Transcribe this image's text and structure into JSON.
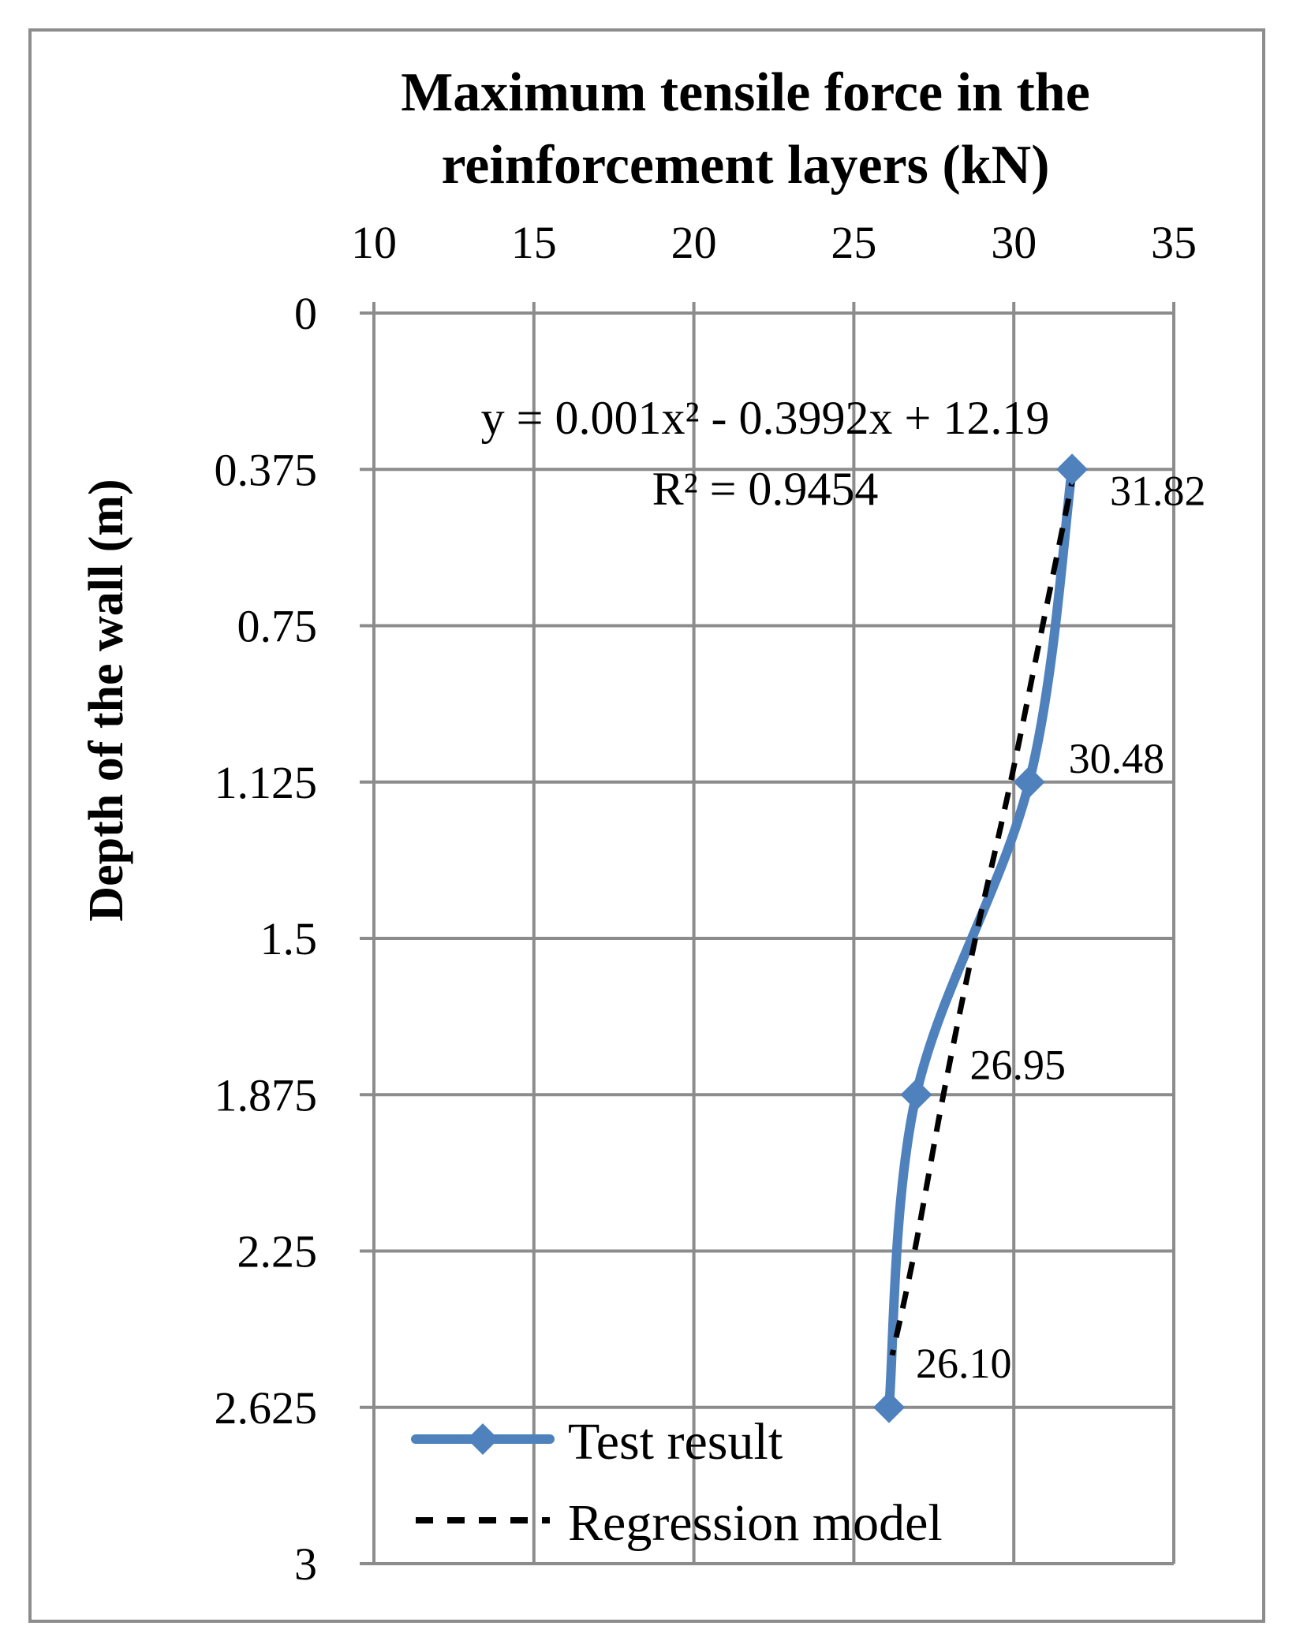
{
  "chart_data": {
    "type": "line",
    "title_lines": [
      "Maximum tensile force in the",
      "reinforcement  layers  (kN)"
    ],
    "xlabel": "Maximum tensile force in the reinforcement  layers  (kN)",
    "ylabel": "Depth of the wall (m)",
    "xlim": [
      10,
      35
    ],
    "ylim": [
      0,
      3
    ],
    "y_reversed": true,
    "x_axis_position": "top",
    "grid": true,
    "x_ticks": [
      10,
      15,
      20,
      25,
      30,
      35
    ],
    "x_tick_labels": [
      "10",
      "15",
      "20",
      "25",
      "30",
      "35"
    ],
    "y_ticks": [
      0,
      0.375,
      0.75,
      1.125,
      1.5,
      1.875,
      2.25,
      2.625,
      3
    ],
    "y_tick_labels": [
      "0",
      "0.375",
      "0.75",
      "1.125",
      "1.5",
      "1.875",
      "2.25",
      "2.625",
      "3"
    ],
    "series": [
      {
        "name": "Test result",
        "color": "#4f81bd",
        "style": "solid",
        "marker": "diamond",
        "x": [
          31.82,
          30.48,
          26.95,
          26.1
        ],
        "y": [
          0.375,
          1.125,
          1.875,
          2.625
        ],
        "labels": [
          "31.82",
          "30.48",
          "26.95",
          "26.10"
        ]
      },
      {
        "name": "Regression model",
        "color": "#000000",
        "style": "dashed",
        "marker": "none",
        "x": [
          31.9,
          30.9,
          29.9,
          28.8,
          27.8,
          26.9,
          26.2
        ],
        "y": [
          0.375,
          0.75,
          1.125,
          1.5,
          1.875,
          2.25,
          2.5
        ]
      }
    ],
    "trendline_equation": "y = 0.001x² - 0.3992x + 12.19",
    "r_squared": "R² = 0.9454",
    "legend": {
      "position": "bottom-left",
      "entries": [
        "Test result",
        "Regression model"
      ]
    }
  }
}
